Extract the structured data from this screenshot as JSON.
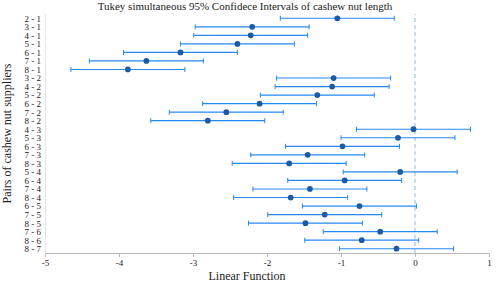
{
  "chart_data": {
    "type": "interval",
    "title": "Tukey simultaneous 95% Confidece Intervals of cashew nut length",
    "x_label": "Linear Function",
    "y_label": "Pairs of cashew nut suppliers",
    "orientation": "horizontal",
    "color": "#1a5ba6",
    "categories": [
      "2 - 1",
      "3 - 1",
      "4 - 1",
      "5 - 1",
      "6 - 1",
      "7 - 1",
      "8 - 1",
      "3 - 2",
      "4 - 2",
      "5 - 2",
      "6 - 2",
      "7 - 2",
      "8 - 2",
      "4 - 3",
      "5 - 3",
      "6 - 3",
      "7 - 3",
      "8 - 3",
      "5 - 4",
      "6 - 4",
      "7 - 4",
      "8 - 4",
      "6 - 5",
      "7 - 5",
      "8 - 5",
      "7 - 6",
      "8 - 6",
      "8 - 7"
    ],
    "values": [
      -1.05,
      -2.2,
      -2.22,
      -2.4,
      -3.17,
      -3.63,
      -3.88,
      -1.1,
      -1.12,
      -1.32,
      -2.1,
      -2.55,
      -2.8,
      -0.02,
      -0.23,
      -0.98,
      -1.45,
      -1.7,
      -0.2,
      -0.95,
      -1.42,
      -1.68,
      -0.75,
      -1.22,
      -1.48,
      -0.47,
      -0.72,
      -0.25
    ],
    "lower": [
      -1.82,
      -2.97,
      -2.99,
      -3.17,
      -3.94,
      -4.4,
      -4.65,
      -1.87,
      -1.89,
      -2.09,
      -2.87,
      -3.32,
      -3.57,
      -0.79,
      -1.0,
      -1.75,
      -2.22,
      -2.47,
      -0.97,
      -1.72,
      -2.19,
      -2.45,
      -1.52,
      -1.99,
      -2.25,
      -1.24,
      -1.49,
      -1.02
    ],
    "upper": [
      -0.28,
      -1.43,
      -1.45,
      -1.63,
      -2.4,
      -2.86,
      -3.11,
      -0.33,
      -0.35,
      -0.55,
      -1.33,
      -1.78,
      -2.03,
      0.75,
      0.54,
      -0.21,
      -0.68,
      -0.93,
      0.57,
      -0.18,
      -0.65,
      -0.91,
      0.02,
      -0.45,
      -0.71,
      0.3,
      0.05,
      0.52
    ],
    "reference_x": 0,
    "xlim": [
      -5,
      1
    ],
    "xticks": [
      -5,
      -4,
      -3,
      -2,
      -1,
      0,
      1
    ],
    "marker": "circle"
  }
}
